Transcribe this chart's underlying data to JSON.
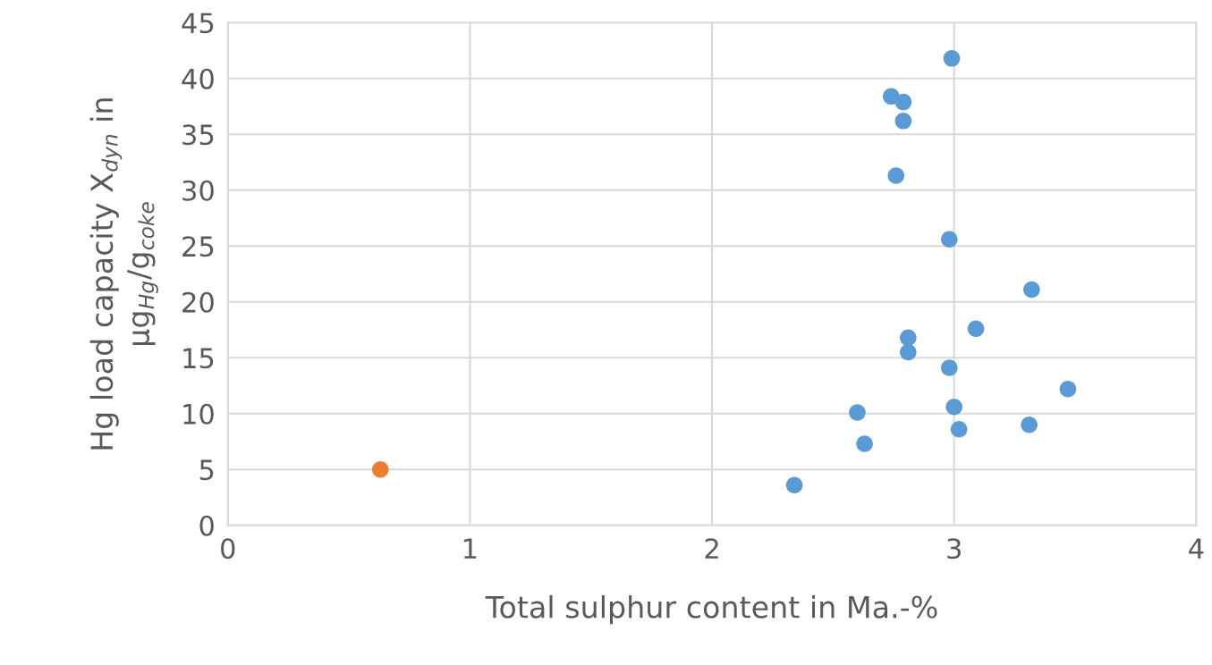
{
  "chart_data": {
    "type": "scatter",
    "xlabel": "Total sulphur content in Ma.-%",
    "ylabel": "Hg load capacity X$_{dyn}$ in\nµg$_{Hg}$/g$_{coke}$",
    "xlim": [
      0,
      4
    ],
    "xticks": [
      0,
      1,
      2,
      3,
      4
    ],
    "ylim": [
      0,
      45
    ],
    "yticks": [
      0,
      5,
      10,
      15,
      20,
      25,
      30,
      35,
      40,
      45
    ],
    "grid": true,
    "marker": "circle",
    "legend": false,
    "series": [
      {
        "color": "#5b9bd5",
        "x": [
          2.34,
          2.6,
          2.63,
          2.74,
          2.76,
          2.79,
          2.79,
          2.81,
          2.81,
          2.98,
          2.98,
          2.99,
          3.0,
          3.02,
          3.09,
          3.32,
          3.31,
          3.47
        ],
        "values": [
          3.6,
          10.1,
          7.3,
          38.4,
          31.3,
          37.9,
          36.2,
          16.8,
          15.5,
          25.6,
          14.1,
          41.8,
          10.6,
          8.6,
          17.6,
          21.1,
          9.0,
          12.2
        ]
      },
      {
        "color": "#ed7d31",
        "x": [
          0.63
        ],
        "values": [
          5.0
        ]
      }
    ]
  }
}
